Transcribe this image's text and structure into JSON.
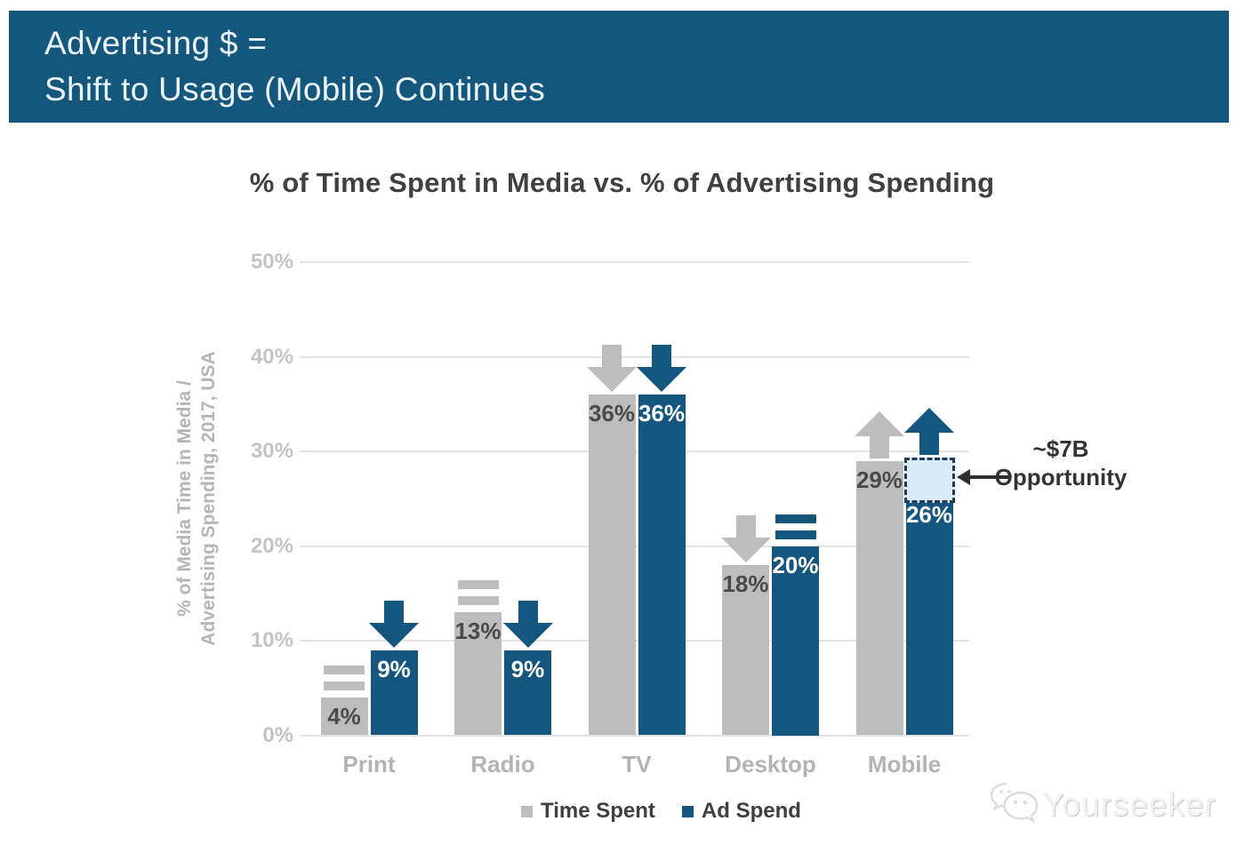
{
  "header": {
    "line1": "Advertising $ =",
    "line2": "Shift to Usage (Mobile) Continues"
  },
  "chart_data": {
    "type": "bar",
    "title": "% of Time Spent in Media vs. % of Advertising Spending",
    "categories": [
      "Print",
      "Radio",
      "TV",
      "Desktop",
      "Mobile"
    ],
    "series": [
      {
        "name": "Time Spent",
        "color": "#BDBDBD",
        "label_color": "#4A4A4A",
        "values": [
          4,
          13,
          36,
          18,
          29
        ],
        "trends": [
          "flat",
          "flat",
          "down",
          "down",
          "up"
        ]
      },
      {
        "name": "Ad Spend",
        "color": "#15567E",
        "label_color": "#FFFFFF",
        "values": [
          9,
          9,
          36,
          20,
          26
        ],
        "trends": [
          "down",
          "down",
          "down",
          "flat",
          "up"
        ]
      }
    ],
    "value_suffix": "%",
    "ylabel_line1": "% of Media Time in Media /",
    "ylabel_line2": "Advertising Spending, 2017, USA",
    "y_ticks": [
      {
        "value": 0,
        "label": "0%"
      },
      {
        "value": 10,
        "label": "10%"
      },
      {
        "value": 20,
        "label": "20%"
      },
      {
        "value": 30,
        "label": "30%"
      },
      {
        "value": 40,
        "label": "40%"
      },
      {
        "value": 50,
        "label": "50%"
      }
    ],
    "ylim": [
      0,
      50
    ],
    "grid": "horizontal",
    "legend_position": "bottom",
    "annotation": {
      "line1": "~$7B",
      "line2": "Opportunity",
      "category_index": 4,
      "series_index": 1,
      "box_from": 26,
      "box_to": 29.3,
      "box_fill": "#D9ECF8",
      "box_border": "#1F3C58"
    }
  },
  "watermark": {
    "text": "Yourseeker",
    "icon": "chat-bubbles-logo"
  }
}
